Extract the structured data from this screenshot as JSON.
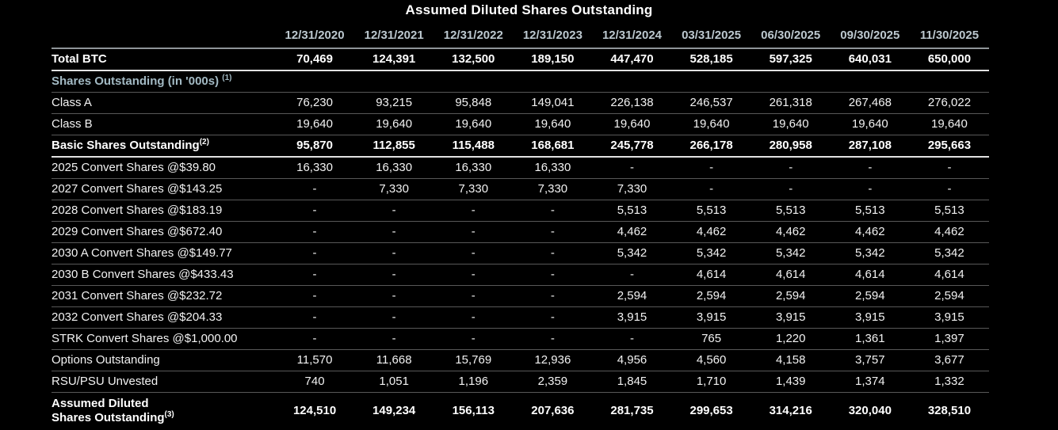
{
  "title": "Assumed Diluted Shares Outstanding",
  "colors": {
    "background": "#000000",
    "text": "#f2f2f2",
    "emphasis_text": "#ffffff",
    "column_header_text": "#bcc8cf",
    "section_header_text": "#a3bac4",
    "divider_line": "#585858",
    "strong_divider_line": "#e2e2e2"
  },
  "chart_data": {
    "type": "table",
    "title": "Assumed Diluted Shares Outstanding",
    "columns": [
      "12/31/2020",
      "12/31/2021",
      "12/31/2022",
      "12/31/2023",
      "12/31/2024",
      "03/31/2025",
      "06/30/2025",
      "09/30/2025",
      "11/30/2025"
    ],
    "rows": [
      {
        "label": "Total BTC",
        "style": "bold",
        "values": [
          "70,469",
          "124,391",
          "132,500",
          "189,150",
          "447,470",
          "528,185",
          "597,325",
          "640,031",
          "650,000"
        ]
      },
      {
        "label": "Shares Outstanding (in '000s) ",
        "sup": "(1)",
        "style": "section",
        "values": []
      },
      {
        "label": "Class A",
        "style": "normal",
        "values": [
          "76,230",
          "93,215",
          "95,848",
          "149,041",
          "226,138",
          "246,537",
          "261,318",
          "267,468",
          "276,022"
        ]
      },
      {
        "label": "Class B",
        "style": "normal",
        "values": [
          "19,640",
          "19,640",
          "19,640",
          "19,640",
          "19,640",
          "19,640",
          "19,640",
          "19,640",
          "19,640"
        ]
      },
      {
        "label": "Basic Shares Outstanding",
        "sup": "(2)",
        "style": "bold",
        "values": [
          "95,870",
          "112,855",
          "115,488",
          "168,681",
          "245,778",
          "266,178",
          "280,958",
          "287,108",
          "295,663"
        ]
      },
      {
        "label": "2025 Convert Shares @$39.80",
        "style": "normal",
        "values": [
          "16,330",
          "16,330",
          "16,330",
          "16,330",
          "-",
          "-",
          "-",
          "-",
          "-"
        ]
      },
      {
        "label": "2027 Convert Shares @$143.25",
        "style": "normal",
        "values": [
          "-",
          "7,330",
          "7,330",
          "7,330",
          "7,330",
          "-",
          "-",
          "-",
          "-"
        ]
      },
      {
        "label": "2028 Convert Shares @$183.19",
        "style": "normal",
        "values": [
          "-",
          "-",
          "-",
          "-",
          "5,513",
          "5,513",
          "5,513",
          "5,513",
          "5,513"
        ]
      },
      {
        "label": "2029 Convert Shares @$672.40",
        "style": "normal",
        "values": [
          "-",
          "-",
          "-",
          "-",
          "4,462",
          "4,462",
          "4,462",
          "4,462",
          "4,462"
        ]
      },
      {
        "label": "2030 A Convert Shares @$149.77",
        "style": "normal",
        "values": [
          "-",
          "-",
          "-",
          "-",
          "5,342",
          "5,342",
          "5,342",
          "5,342",
          "5,342"
        ]
      },
      {
        "label": "2030 B Convert Shares @$433.43",
        "style": "normal",
        "values": [
          "-",
          "-",
          "-",
          "-",
          "-",
          "4,614",
          "4,614",
          "4,614",
          "4,614"
        ]
      },
      {
        "label": "2031 Convert Shares @$232.72",
        "style": "normal",
        "values": [
          "-",
          "-",
          "-",
          "-",
          "2,594",
          "2,594",
          "2,594",
          "2,594",
          "2,594"
        ]
      },
      {
        "label": "2032 Convert Shares @$204.33",
        "style": "normal",
        "values": [
          "-",
          "-",
          "-",
          "-",
          "3,915",
          "3,915",
          "3,915",
          "3,915",
          "3,915"
        ]
      },
      {
        "label": "STRK Convert Shares @$1,000.00",
        "style": "normal",
        "values": [
          "-",
          "-",
          "-",
          "-",
          "-",
          "765",
          "1,220",
          "1,361",
          "1,397"
        ]
      },
      {
        "label": "Options Outstanding",
        "style": "normal",
        "values": [
          "11,570",
          "11,668",
          "15,769",
          "12,936",
          "4,956",
          "4,560",
          "4,158",
          "3,757",
          "3,677"
        ]
      },
      {
        "label": "RSU/PSU Unvested",
        "style": "normal",
        "values": [
          "740",
          "1,051",
          "1,196",
          "2,359",
          "1,845",
          "1,710",
          "1,439",
          "1,374",
          "1,332"
        ]
      },
      {
        "label": "Assumed Diluted",
        "label2": "Shares Outstanding",
        "sup": "(3)",
        "style": "total",
        "values": [
          "124,510",
          "149,234",
          "156,113",
          "207,636",
          "281,735",
          "299,653",
          "314,216",
          "320,040",
          "328,510"
        ]
      }
    ]
  }
}
